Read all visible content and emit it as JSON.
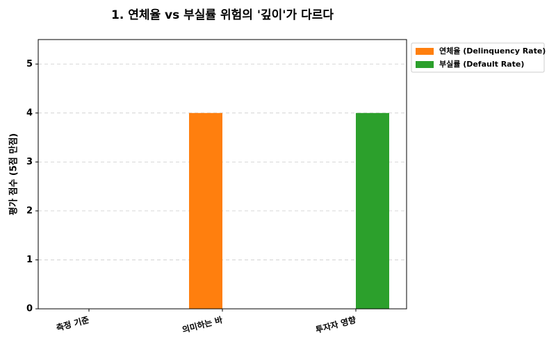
{
  "chart_data": {
    "type": "bar",
    "title": "1. 연체율 vs 부실률 위험의 '깊이'가 다르다",
    "y_label": "평가 점수 (5점 만점)",
    "categories": [
      "측정 기준",
      "의미하는 바",
      "투자자 영향"
    ],
    "series": [
      {
        "name": "연체율 (Delinquency Rate)",
        "color": "#ff7f0e",
        "values": [
          0,
          4,
          0
        ]
      },
      {
        "name": "부실률 (Default Rate)",
        "color": "#2ca02c",
        "values": [
          0,
          0,
          4
        ]
      }
    ],
    "ylim": [
      0,
      5.5
    ],
    "yticks": [
      0,
      1,
      2,
      3,
      4,
      5
    ],
    "grid": true
  }
}
